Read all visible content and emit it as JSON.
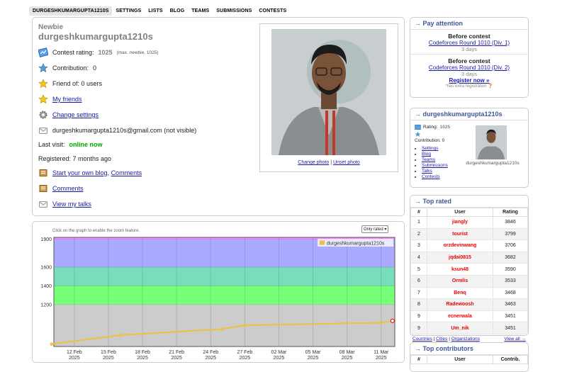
{
  "nav": {
    "items": [
      "DURGESHKUMARGUPTA1210S",
      "SETTINGS",
      "LISTS",
      "BLOG",
      "TEAMS",
      "SUBMISSIONS",
      "CONTESTS"
    ]
  },
  "profile": {
    "rank": "Newbie",
    "handle": "durgeshkumargupta1210s",
    "rating_label": "Contest rating:",
    "rating_value": "1025",
    "rating_max": "(max. newbie, 1025)",
    "contribution_label": "Contribution:",
    "contribution_value": "0",
    "friend_of": "Friend of: 0 users",
    "my_friends": "My friends",
    "change_settings": "Change settings",
    "email": "durgeshkumargupta1210s@gmail.com (not visible)",
    "last_visit_label": "Last visit:",
    "last_visit_value": "online now",
    "registered": "Registered: 7 months ago",
    "start_blog": "Start your own blog",
    "comments_link": "Comments",
    "comments": "Comments",
    "view_talks": "View my talks",
    "change_photo": "Change photo",
    "unset_photo": "Unset photo"
  },
  "graph": {
    "hint": "Click on the graph to enable the zoom feature.",
    "select": "Only rated",
    "legend": "durgeshkumargupta1210s"
  },
  "chart_data": {
    "type": "line",
    "yticks": [
      1200,
      1400,
      1600,
      1900
    ],
    "xticks": [
      [
        "12 Feb",
        "2025"
      ],
      [
        "15 Feb",
        "2025"
      ],
      [
        "18 Feb",
        "2025"
      ],
      [
        "21 Feb",
        "2025"
      ],
      [
        "24 Feb",
        "2025"
      ],
      [
        "27 Feb",
        "2025"
      ],
      [
        "02 Mar",
        "2025"
      ],
      [
        "05 Mar",
        "2025"
      ],
      [
        "08 Mar",
        "2025"
      ],
      [
        "11 Mar",
        "2025"
      ]
    ],
    "ylim": [
      750,
      1920
    ],
    "xlim_days": [
      -1.8,
      28.2
    ],
    "series": [
      {
        "name": "durgeshkumargupta1210s",
        "x": [
          "2025-02-10",
          "2025-02-16",
          "2025-02-25",
          "2025-02-27",
          "2025-03-11",
          "2025-03-12"
        ],
        "y": [
          776,
          872,
          937,
          978,
          1005,
          1025
        ]
      }
    ],
    "bands": [
      {
        "from": 750,
        "to": 1200,
        "color": "#cccccc"
      },
      {
        "from": 1200,
        "to": 1400,
        "color": "#77ff77"
      },
      {
        "from": 1400,
        "to": 1600,
        "color": "#77ddbb"
      },
      {
        "from": 1600,
        "to": 1900,
        "color": "#aaaaff"
      },
      {
        "from": 1900,
        "to": 1920,
        "color": "#ff88ff"
      }
    ],
    "line_color": "#edc240"
  },
  "pay_attention": {
    "title": "→ Pay attention",
    "items": [
      {
        "heading": "Before contest",
        "link": "Codeforces Round 1010 (Div. 1)",
        "time": "3 days"
      },
      {
        "heading": "Before contest",
        "link": "Codeforces Round 1010 (Div. 2)",
        "time": "3 days",
        "register": "Register now »",
        "note": "*has extra registration"
      }
    ]
  },
  "user_box": {
    "title": "→ durgeshkumargupta1210s",
    "rating_label": "Rating:",
    "rating_value": "1025",
    "contribution_label": "Contribution:",
    "contribution_value": "0",
    "links": [
      "Settings",
      "Blog",
      "Teams",
      "Submissions",
      "Talks",
      "Contests"
    ],
    "caption": "durgeshkumargupta1210s"
  },
  "top_rated": {
    "title": "→ Top rated",
    "headers": [
      "#",
      "User",
      "Rating"
    ],
    "rows": [
      {
        "rank": "1",
        "user": "jiangly",
        "rating": "3846"
      },
      {
        "rank": "2",
        "user": "tourist",
        "rating": "3799"
      },
      {
        "rank": "3",
        "user": "orzdevinwang",
        "rating": "3706"
      },
      {
        "rank": "4",
        "user": "jqdai0815",
        "rating": "3682"
      },
      {
        "rank": "5",
        "user": "ksun48",
        "rating": "3590"
      },
      {
        "rank": "6",
        "user": "Ormlis",
        "rating": "3533"
      },
      {
        "rank": "7",
        "user": "Benq",
        "rating": "3468"
      },
      {
        "rank": "8",
        "user": "Radewoosh",
        "rating": "3463"
      },
      {
        "rank": "9",
        "user": "ecnerwala",
        "rating": "3451"
      },
      {
        "rank": "9",
        "user": "Um_nik",
        "rating": "3451"
      }
    ],
    "footer_links": [
      "Countries",
      "Cities",
      "Organizations"
    ],
    "view_all": "View all →"
  },
  "top_contributors": {
    "title": "→ Top contributors",
    "headers": [
      "#",
      "User",
      "Contrib."
    ]
  }
}
